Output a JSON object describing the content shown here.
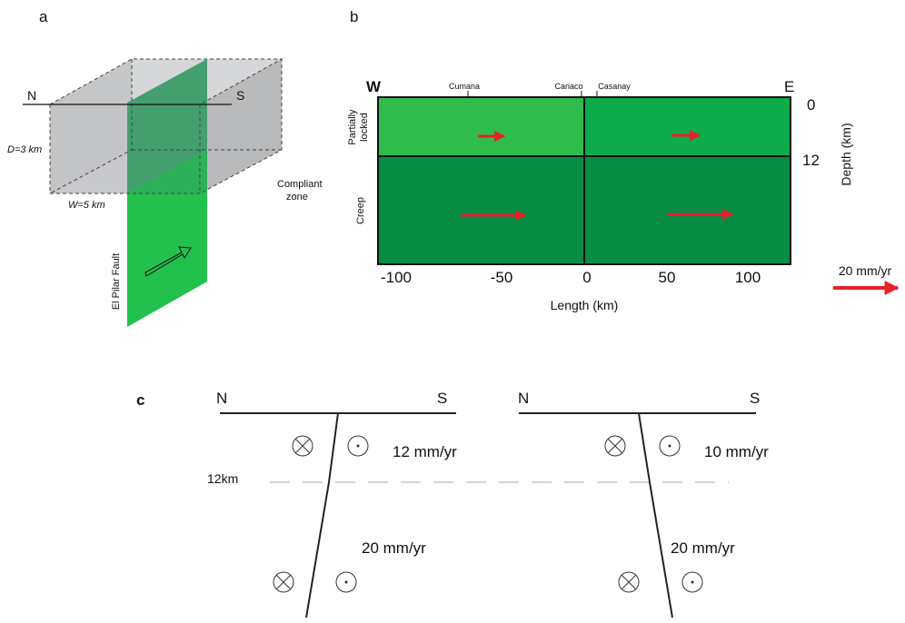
{
  "panel_a": {
    "label": "a",
    "north": "N",
    "south": "S",
    "depth": "D=3 km",
    "width": "W=5 km",
    "zone": [
      "Compliant",
      "zone"
    ],
    "fault": "El Pilar Fault"
  },
  "panel_b": {
    "label": "b",
    "west": "W",
    "east": "E",
    "towns": [
      "Cumana",
      "Cariaco",
      "Casanay"
    ],
    "layers": [
      [
        "Partially",
        "locked"
      ],
      "Creep"
    ],
    "depth_ticks": [
      0,
      12
    ],
    "depth_label": "Depth (km)",
    "length_ticks": [
      -100,
      -50,
      0,
      50,
      100
    ],
    "length_label": "Length (km)",
    "scale": "20 mm/yr"
  },
  "panel_c": {
    "label": "c",
    "depth": "12km",
    "left": {
      "north": "N",
      "south": "S",
      "upper_rate": "12 mm/yr",
      "lower_rate": "20 mm/yr"
    },
    "right": {
      "north": "N",
      "south": "S",
      "upper_rate": "10 mm/yr",
      "lower_rate": "20 mm/yr"
    }
  }
}
